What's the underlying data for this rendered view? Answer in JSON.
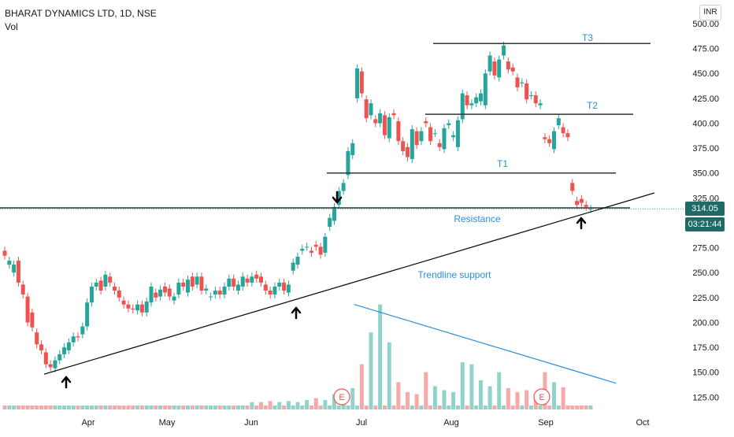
{
  "header": {
    "symbol": "BHARAT DYNAMICS LTD, 1D, NSE",
    "indicator": "Vol"
  },
  "currency": "INR",
  "price_label": "314.05",
  "countdown_label": "03:21:44",
  "colors": {
    "up": "#26a69a",
    "down": "#ef5350",
    "vol_up": "#8fd3c9",
    "vol_down": "#f5a9a8",
    "annotation": "#2a8fd9",
    "badge_down": "#ef5350",
    "badge_dark": "#1f6a64"
  },
  "annotations": {
    "t1": "T1",
    "t2": "T2",
    "t3": "T3",
    "resistance": "Resistance",
    "trendline": "Trendline support",
    "earnings": "E"
  },
  "chart_data": {
    "type": "candlestick",
    "y_axis": {
      "ticks": [
        "500.00",
        "475.00",
        "450.00",
        "425.00",
        "400.00",
        "375.00",
        "350.00",
        "325.00",
        "300.00",
        "275.00",
        "250.00",
        "225.00",
        "200.00",
        "175.00",
        "150.00",
        "125.00"
      ],
      "range": [
        116,
        503
      ]
    },
    "x_axis": {
      "ticks": [
        "Apr",
        "May",
        "Jun",
        "Jul",
        "Aug",
        "Sep",
        "Oct"
      ]
    },
    "levels": {
      "T3": 480,
      "T2": 409,
      "T1": 350,
      "resistance": 315
    },
    "trendline_support": [
      [
        "2023-03-20",
        148
      ],
      [
        "2023-09-28",
        330
      ]
    ],
    "volume_trendline": [
      [
        "2023-06-26",
        218
      ],
      [
        "2023-09-25",
        139
      ]
    ],
    "arrows": [
      {
        "date": "2023-03-22",
        "direction": "up"
      },
      {
        "date": "2023-06-16",
        "direction": "up"
      },
      {
        "date": "2023-06-28",
        "direction": "down"
      },
      {
        "date": "2023-09-08",
        "direction": "up"
      }
    ],
    "candles": [
      [
        272,
        267
      ],
      [
        258,
        262
      ],
      [
        250,
        258
      ],
      [
        262,
        240
      ],
      [
        238,
        228
      ],
      [
        226,
        200
      ],
      [
        210,
        195
      ],
      [
        190,
        178
      ],
      [
        178,
        172
      ],
      [
        170,
        158
      ],
      [
        158,
        155
      ],
      [
        154,
        162
      ],
      [
        162,
        168
      ],
      [
        168,
        175
      ],
      [
        172,
        180
      ],
      [
        180,
        186
      ],
      [
        186,
        185
      ],
      [
        188,
        196
      ],
      [
        196,
        220
      ],
      [
        220,
        236
      ],
      [
        236,
        240
      ],
      [
        242,
        232
      ],
      [
        236,
        248
      ],
      [
        246,
        240
      ],
      [
        236,
        232
      ],
      [
        232,
        225
      ],
      [
        222,
        218
      ],
      [
        218,
        214
      ],
      [
        214,
        213
      ],
      [
        212,
        218
      ],
      [
        218,
        210
      ],
      [
        210,
        221
      ],
      [
        220,
        236
      ],
      [
        230,
        225
      ],
      [
        226,
        233
      ],
      [
        236,
        230
      ],
      [
        234,
        226
      ],
      [
        222,
        226
      ],
      [
        228,
        240
      ],
      [
        240,
        236
      ],
      [
        230,
        243
      ],
      [
        246,
        236
      ],
      [
        238,
        246
      ],
      [
        246,
        232
      ],
      [
        232,
        234
      ],
      [
        226,
        226
      ],
      [
        228,
        232
      ],
      [
        232,
        228
      ],
      [
        228,
        236
      ],
      [
        236,
        244
      ],
      [
        244,
        236
      ],
      [
        232,
        238
      ],
      [
        236,
        246
      ],
      [
        244,
        240
      ],
      [
        240,
        246
      ],
      [
        248,
        244
      ],
      [
        246,
        240
      ],
      [
        238,
        232
      ],
      [
        232,
        228
      ],
      [
        228,
        236
      ],
      [
        236,
        240
      ],
      [
        240,
        232
      ],
      [
        230,
        238
      ],
      [
        252,
        260
      ],
      [
        258,
        266
      ],
      [
        272,
        274
      ],
      [
        276,
        276
      ],
      [
        272,
        270
      ],
      [
        278,
        276
      ],
      [
        276,
        268
      ],
      [
        270,
        286
      ],
      [
        296,
        305
      ],
      [
        302,
        316
      ],
      [
        318,
        332
      ],
      [
        332,
        340
      ],
      [
        348,
        372
      ],
      [
        368,
        380
      ],
      [
        425,
        455
      ],
      [
        452,
        430
      ],
      [
        424,
        405
      ],
      [
        408,
        420
      ],
      [
        404,
        400
      ],
      [
        400,
        410
      ],
      [
        408,
        388
      ],
      [
        385,
        406
      ],
      [
        410,
        408
      ],
      [
        402,
        382
      ],
      [
        382,
        372
      ],
      [
        376,
        366
      ],
      [
        364,
        394
      ],
      [
        392,
        378
      ],
      [
        382,
        392
      ],
      [
        402,
        400
      ],
      [
        396,
        382
      ],
      [
        390,
        390
      ],
      [
        380,
        376
      ],
      [
        374,
        395
      ],
      [
        398,
        400
      ],
      [
        386,
        388
      ],
      [
        376,
        403
      ],
      [
        404,
        430
      ],
      [
        428,
        418
      ],
      [
        418,
        420
      ],
      [
        420,
        426
      ],
      [
        422,
        430
      ],
      [
        418,
        450
      ],
      [
        452,
        468
      ],
      [
        462,
        448
      ],
      [
        446,
        464
      ],
      [
        468,
        478
      ],
      [
        462,
        454
      ],
      [
        456,
        452
      ],
      [
        446,
        436
      ],
      [
        440,
        441
      ],
      [
        440,
        424
      ],
      [
        428,
        428
      ],
      [
        428,
        420
      ],
      [
        418,
        420
      ],
      [
        386,
        384
      ],
      [
        384,
        380
      ],
      [
        374,
        392
      ],
      [
        398,
        405
      ],
      [
        396,
        390
      ],
      [
        390,
        386
      ],
      [
        340,
        332
      ],
      [
        322,
        318
      ],
      [
        324,
        320
      ],
      [
        318,
        316
      ],
      [
        314,
        314
      ]
    ],
    "volumes_x_candle_index": [
      54,
      56,
      58,
      60,
      62,
      64,
      66,
      68,
      70,
      72,
      74,
      76,
      78,
      80,
      82,
      84,
      86,
      88,
      90,
      92,
      94,
      96,
      98,
      100,
      102,
      104,
      106,
      108,
      110,
      112,
      114,
      116,
      118,
      120,
      122
    ],
    "volumes": [
      120,
      120,
      121,
      120,
      121,
      120,
      122,
      124,
      122,
      128,
      130,
      134,
      158,
      190,
      218,
      180,
      140,
      130,
      128,
      150,
      136,
      132,
      130,
      160,
      158,
      142,
      136,
      150,
      134,
      130,
      132,
      128,
      150,
      140,
      135
    ]
  }
}
